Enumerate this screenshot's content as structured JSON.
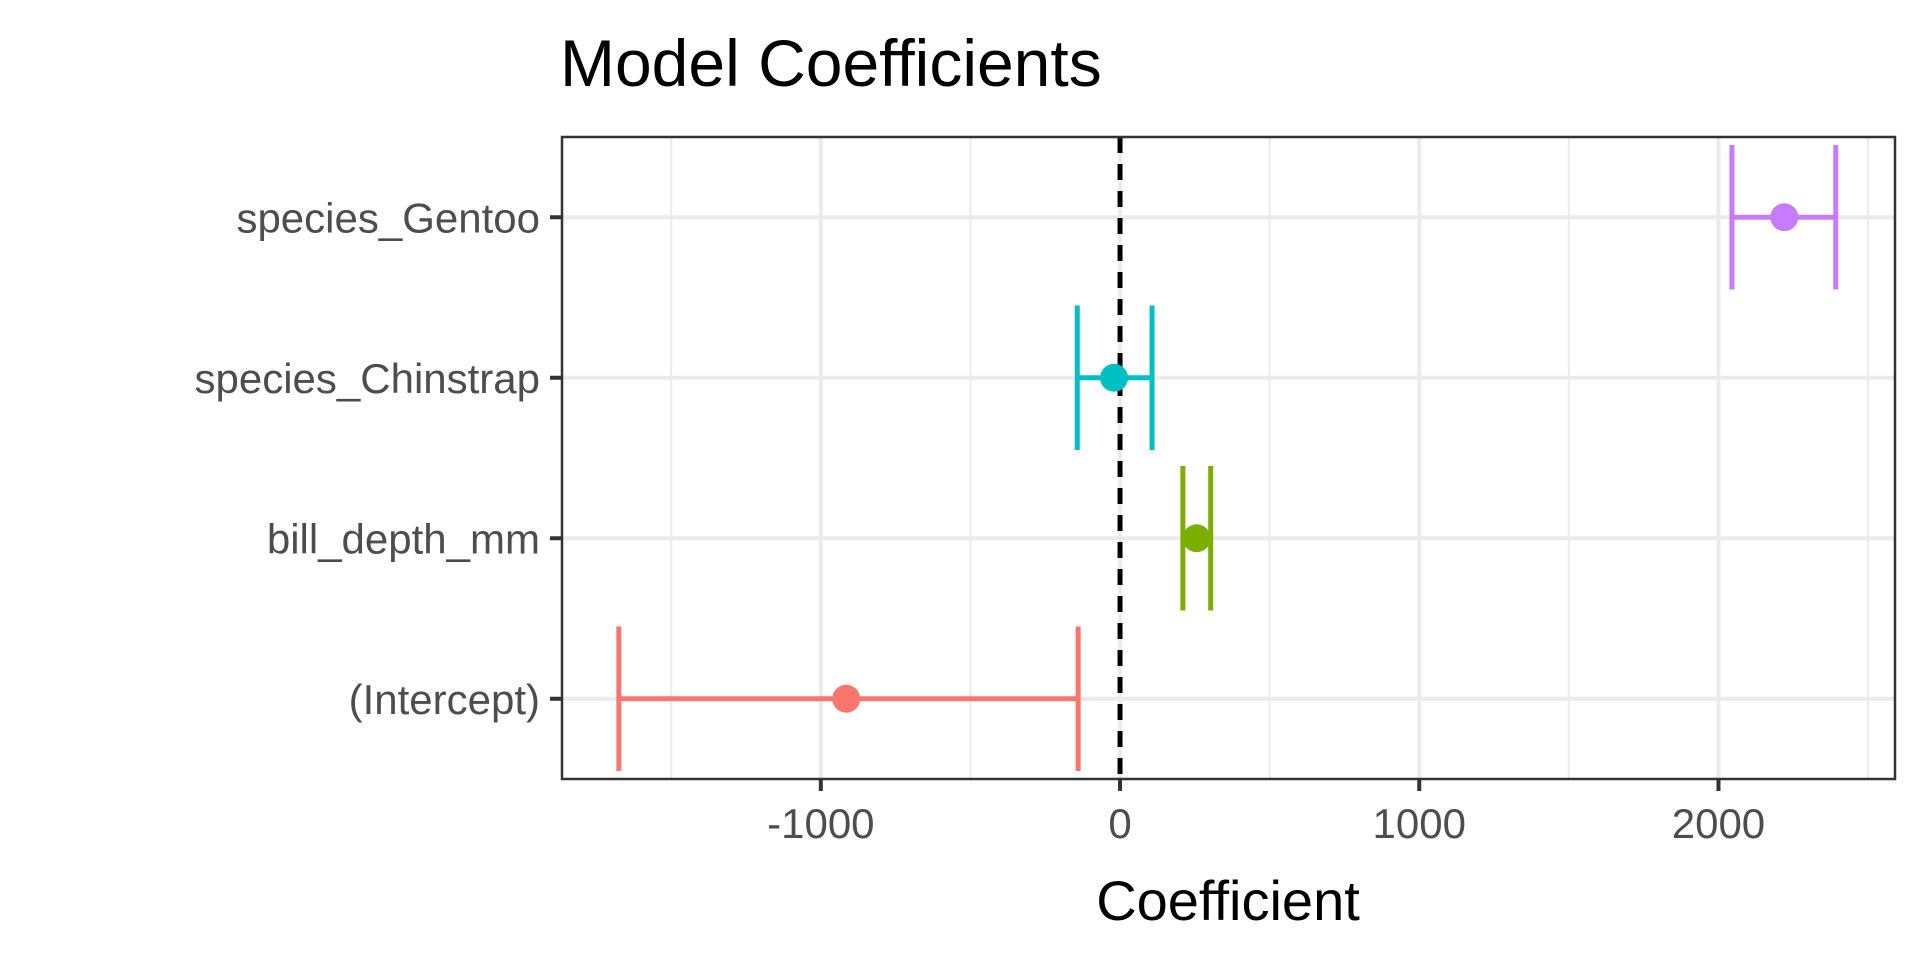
{
  "chart_data": {
    "type": "scatter",
    "title": "Model Coefficients",
    "xlabel": "Coefficient",
    "ylabel": "",
    "xlim": [
      -1865,
      2590
    ],
    "x_ticks": [
      -1000,
      0,
      1000,
      2000
    ],
    "x_tick_labels": [
      "-1000",
      "0",
      "1000",
      "2000"
    ],
    "x_minor_ticks": [
      -1500,
      -500,
      500,
      1500,
      2500
    ],
    "grid": true,
    "legend": "none",
    "reference_line": {
      "x": 0,
      "style": "dashed",
      "color": "#000000"
    },
    "categories": [
      "(Intercept)",
      "bill_depth_mm",
      "species_Chinstrap",
      "species_Gentoo"
    ],
    "series": [
      {
        "term": "(Intercept)",
        "estimate": -915,
        "conf_low": -1675,
        "conf_high": -140,
        "color": "#F8766D"
      },
      {
        "term": "bill_depth_mm",
        "estimate": 256,
        "conf_low": 210,
        "conf_high": 303,
        "color": "#7CAE00"
      },
      {
        "term": "species_Chinstrap",
        "estimate": -20,
        "conf_low": -143,
        "conf_high": 107,
        "color": "#00BFC4"
      },
      {
        "term": "species_Gentoo",
        "estimate": 2220,
        "conf_low": 2045,
        "conf_high": 2392,
        "color": "#C77CFF"
      }
    ]
  }
}
